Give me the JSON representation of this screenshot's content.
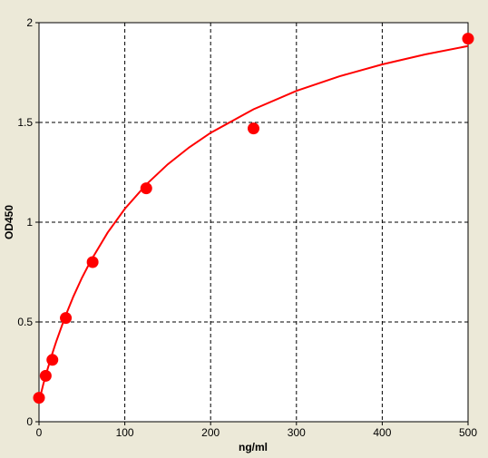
{
  "chart_data": {
    "type": "scatter",
    "title": "",
    "xlabel": "ng/ml",
    "ylabel": "OD450",
    "xlim": [
      0,
      500
    ],
    "ylim": [
      0,
      2
    ],
    "grid": true,
    "x_ticks": [
      0,
      100,
      200,
      300,
      400,
      500
    ],
    "y_ticks": [
      0,
      0.5,
      1,
      1.5,
      2
    ],
    "x_tick_labels": [
      "0",
      "100",
      "200",
      "300",
      "400",
      "500"
    ],
    "y_tick_labels": [
      "0",
      "0.5",
      "1",
      "1.5",
      "2"
    ],
    "series": [
      {
        "type": "scatter",
        "x": [
          0,
          7.8,
          15.6,
          31.25,
          62.5,
          125,
          250,
          500
        ],
        "y": [
          0.12,
          0.23,
          0.31,
          0.52,
          0.8,
          1.17,
          1.47,
          1.92
        ]
      },
      {
        "type": "line",
        "fit": "four-parameter logistic",
        "x": [
          0,
          5,
          10,
          15,
          20,
          30,
          40,
          50,
          60,
          80,
          100,
          125,
          150,
          175,
          200,
          250,
          300,
          350,
          400,
          450,
          500
        ],
        "y": [
          0.1,
          0.188,
          0.264,
          0.335,
          0.401,
          0.521,
          0.627,
          0.721,
          0.804,
          0.948,
          1.067,
          1.189,
          1.29,
          1.375,
          1.448,
          1.566,
          1.658,
          1.731,
          1.791,
          1.841,
          1.883
        ]
      }
    ],
    "colors": {
      "points": "#FF0000",
      "curve": "#FF0000",
      "grid": "#000000",
      "plot_background": "#FFFFFF",
      "figure_background": "#ECE9D8"
    }
  }
}
